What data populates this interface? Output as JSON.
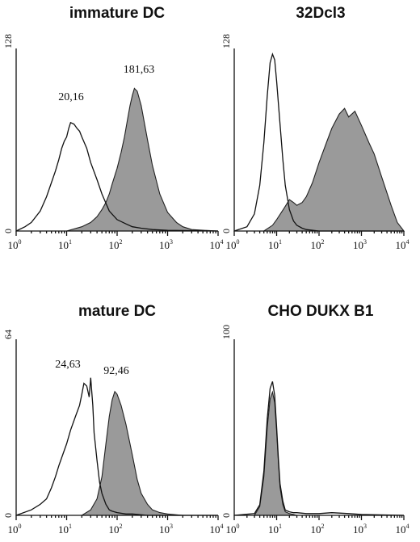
{
  "chart_data": [
    {
      "type": "area",
      "title": "immature DC",
      "x_scale": "log",
      "xlim": [
        1,
        10000
      ],
      "x_ticks": [
        {
          "base": "10",
          "exp": "0"
        },
        {
          "base": "10",
          "exp": "1"
        },
        {
          "base": "10",
          "exp": "2"
        },
        {
          "base": "10",
          "exp": "3"
        },
        {
          "base": "10",
          "exp": "4"
        }
      ],
      "ylim": [
        0,
        128
      ],
      "y_tick_labels": [
        "0",
        "128"
      ],
      "annotations": [
        "20,16",
        "181,63"
      ],
      "series": [
        {
          "style": "open",
          "x": [
            1,
            1.5,
            2,
            3,
            4,
            5,
            6,
            7,
            8,
            9,
            10,
            11,
            12,
            14,
            16,
            18,
            20,
            25,
            30,
            40,
            50,
            70,
            100,
            150,
            200,
            300,
            500,
            1000,
            10000
          ],
          "y": [
            0,
            3,
            6,
            14,
            24,
            34,
            42,
            50,
            58,
            63,
            66,
            72,
            76,
            75,
            72,
            70,
            66,
            58,
            48,
            36,
            26,
            14,
            8,
            5,
            3,
            2,
            1,
            0.5,
            0
          ]
        },
        {
          "style": "filled",
          "x": [
            1,
            10,
            20,
            30,
            40,
            50,
            60,
            70,
            80,
            100,
            120,
            140,
            160,
            180,
            200,
            220,
            250,
            300,
            400,
            500,
            700,
            1000,
            1500,
            2000,
            3000,
            5000,
            10000
          ],
          "y": [
            0,
            0,
            3,
            6,
            10,
            15,
            20,
            26,
            33,
            44,
            55,
            66,
            78,
            88,
            95,
            100,
            98,
            88,
            64,
            46,
            26,
            13,
            6,
            3,
            1,
            0.5,
            0
          ]
        }
      ]
    },
    {
      "type": "area",
      "title": "32Dcl3",
      "x_scale": "log",
      "xlim": [
        1,
        10000
      ],
      "x_ticks": [
        {
          "base": "10",
          "exp": "0"
        },
        {
          "base": "10",
          "exp": "1"
        },
        {
          "base": "10",
          "exp": "2"
        },
        {
          "base": "10",
          "exp": "3"
        },
        {
          "base": "10",
          "exp": "4"
        }
      ],
      "ylim": [
        0,
        128
      ],
      "y_tick_labels": [
        "0",
        "128"
      ],
      "annotations": [],
      "series": [
        {
          "style": "open",
          "x": [
            1,
            2,
            3,
            4,
            5,
            6,
            7,
            8,
            9,
            10,
            12,
            14,
            16,
            20,
            25,
            30,
            40,
            50,
            100,
            10000
          ],
          "y": [
            0,
            3,
            12,
            32,
            62,
            95,
            118,
            124,
            120,
            105,
            75,
            50,
            32,
            15,
            7,
            4,
            2,
            1,
            0,
            0
          ]
        },
        {
          "style": "filled",
          "x": [
            1,
            5,
            8,
            10,
            15,
            20,
            25,
            30,
            40,
            50,
            70,
            100,
            150,
            200,
            300,
            400,
            500,
            700,
            1000,
            1500,
            2000,
            3000,
            5000,
            7000,
            10000
          ],
          "y": [
            0,
            0,
            4,
            8,
            16,
            22,
            20,
            18,
            20,
            24,
            34,
            48,
            62,
            72,
            82,
            86,
            80,
            84,
            74,
            62,
            54,
            38,
            18,
            6,
            0
          ]
        }
      ]
    },
    {
      "type": "area",
      "title": "mature DC",
      "x_scale": "log",
      "xlim": [
        1,
        10000
      ],
      "x_ticks": [
        {
          "base": "10",
          "exp": "0"
        },
        {
          "base": "10",
          "exp": "1"
        },
        {
          "base": "10",
          "exp": "2"
        },
        {
          "base": "10",
          "exp": "3"
        },
        {
          "base": "10",
          "exp": "4"
        }
      ],
      "ylim": [
        0,
        64
      ],
      "y_tick_labels": [
        "0",
        "64"
      ],
      "annotations": [
        "24,63",
        "92,46"
      ],
      "series": [
        {
          "style": "open",
          "x": [
            1,
            2,
            3,
            4,
            5,
            6,
            7,
            8,
            10,
            12,
            15,
            18,
            20,
            22,
            25,
            28,
            30,
            33,
            35,
            40,
            45,
            50,
            60,
            70,
            80,
            100,
            150,
            200,
            400,
            10000
          ],
          "y": [
            0,
            2,
            4,
            6,
            10,
            14,
            18,
            21,
            26,
            31,
            36,
            40,
            44,
            48,
            47,
            43,
            50,
            40,
            30,
            20,
            12,
            8,
            4,
            2,
            1.5,
            1,
            0.5,
            0.5,
            0,
            0
          ]
        },
        {
          "style": "filled",
          "x": [
            1,
            20,
            30,
            40,
            50,
            60,
            70,
            80,
            90,
            100,
            120,
            150,
            200,
            250,
            300,
            400,
            500,
            700,
            1000,
            2000,
            10000
          ],
          "y": [
            0,
            0,
            2,
            6,
            14,
            26,
            36,
            42,
            45,
            44,
            40,
            33,
            22,
            13,
            8,
            4,
            2,
            1,
            0.5,
            0,
            0
          ]
        }
      ]
    },
    {
      "type": "area",
      "title": "CHO DUKX B1",
      "x_scale": "log",
      "xlim": [
        1,
        10000
      ],
      "x_ticks": [
        {
          "base": "10",
          "exp": "0"
        },
        {
          "base": "10",
          "exp": "1"
        },
        {
          "base": "10",
          "exp": "2"
        },
        {
          "base": "10",
          "exp": "3"
        },
        {
          "base": "10",
          "exp": "4"
        }
      ],
      "ylim": [
        0,
        100
      ],
      "y_tick_labels": [
        "0",
        "100"
      ],
      "annotations": [],
      "series": [
        {
          "style": "open",
          "x": [
            1,
            3,
            4,
            5,
            6,
            7,
            8,
            9,
            10,
            11,
            12,
            14,
            16,
            20,
            25,
            30,
            50,
            100,
            200,
            500,
            1000,
            10000
          ],
          "y": [
            0,
            1,
            6,
            25,
            55,
            72,
            76,
            68,
            50,
            32,
            18,
            8,
            3,
            2,
            1.5,
            1.5,
            1,
            1,
            1.5,
            1,
            0.5,
            0
          ]
        },
        {
          "style": "filled",
          "x": [
            1,
            3,
            4,
            5,
            6,
            7,
            8,
            9,
            10,
            11,
            12,
            14,
            16,
            20,
            25,
            30,
            100,
            10000
          ],
          "y": [
            0,
            0,
            5,
            22,
            50,
            66,
            70,
            64,
            48,
            30,
            16,
            6,
            2,
            1,
            0.5,
            0,
            0,
            0
          ]
        }
      ]
    }
  ]
}
